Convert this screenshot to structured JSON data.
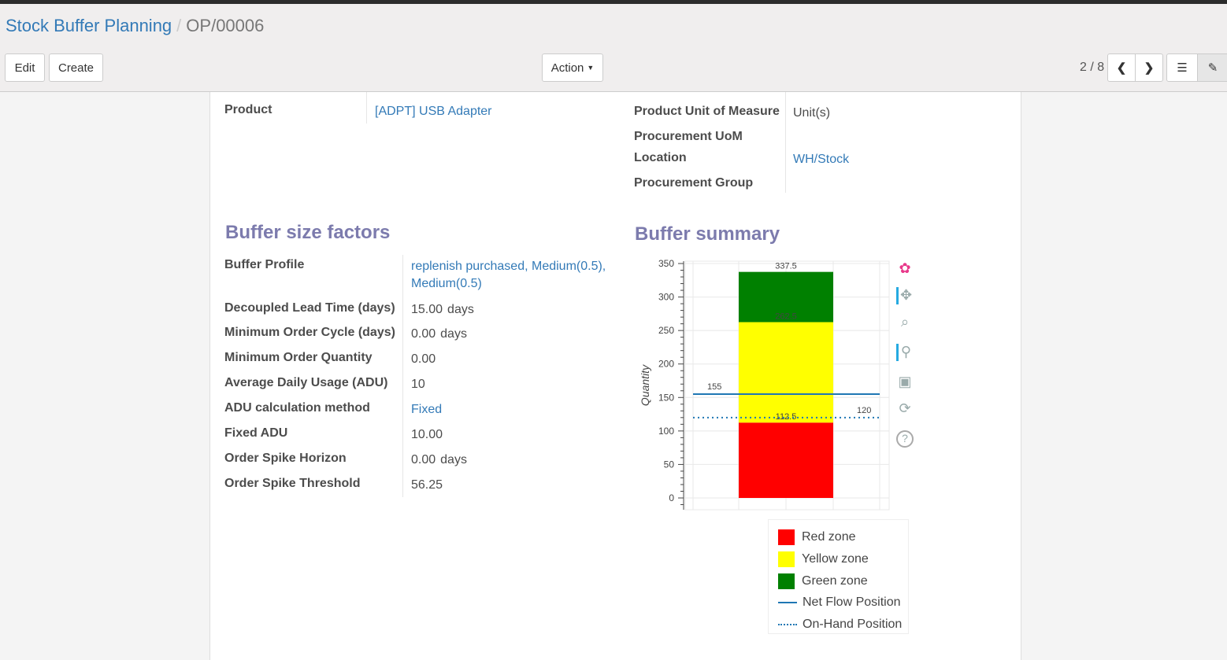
{
  "breadcrumb": {
    "parent": "Stock Buffer Planning",
    "current": "OP/00006"
  },
  "toolbar": {
    "edit": "Edit",
    "create": "Create",
    "action": "Action",
    "pager": "2 / 8"
  },
  "form": {
    "product_label": "Product",
    "product_value": "[ADPT] USB Adapter",
    "uom_label": "Product Unit of Measure",
    "uom_value": "Unit(s)",
    "proc_uom_label": "Procurement UoM",
    "location_label": "Location",
    "location_value": "WH/Stock",
    "proc_group_label": "Procurement Group"
  },
  "factors": {
    "title": "Buffer size factors",
    "rows": [
      {
        "label": "Buffer Profile",
        "value": "replenish purchased, Medium(0.5), Medium(0.5)",
        "link": true
      },
      {
        "label": "Decoupled Lead Time (days)",
        "value": "15.00",
        "unit": "days"
      },
      {
        "label": "Minimum Order Cycle (days)",
        "value": "0.00",
        "unit": "days"
      },
      {
        "label": "Minimum Order Quantity",
        "value": "0.00"
      },
      {
        "label": "Average Daily Usage (ADU)",
        "value": "10"
      },
      {
        "label": "ADU calculation method",
        "value": "Fixed",
        "link": true
      },
      {
        "label": "Fixed ADU",
        "value": "10.00"
      },
      {
        "label": "Order Spike Horizon",
        "value": "0.00",
        "unit": "days"
      },
      {
        "label": "Order Spike Threshold",
        "value": "56.25"
      }
    ]
  },
  "summary": {
    "title": "Buffer summary"
  },
  "chart_data": {
    "type": "bar",
    "ylabel": "Quantity",
    "ylim": [
      0,
      350
    ],
    "yticks": [
      0,
      50,
      100,
      150,
      200,
      250,
      300,
      350
    ],
    "stacks": [
      {
        "name": "Red zone",
        "from": 0,
        "to": 112.5,
        "color": "#ff0000",
        "label": "112.5"
      },
      {
        "name": "Yellow zone",
        "from": 112.5,
        "to": 262.5,
        "color": "#ffff00",
        "label": "262.5"
      },
      {
        "name": "Green zone",
        "from": 262.5,
        "to": 337.5,
        "color": "#008000",
        "label": "337.5"
      }
    ],
    "lines": [
      {
        "name": "Net Flow Position",
        "value": 155,
        "label": "155",
        "style": "solid",
        "color": "#1f77b4"
      },
      {
        "name": "On-Hand Position",
        "value": 120,
        "label": "120",
        "style": "dotted",
        "color": "#1f77b4"
      }
    ],
    "grid": true,
    "legend": "bottom"
  },
  "tools": [
    "bokeh-logo-icon",
    "pan-icon",
    "box-zoom-icon",
    "wheel-zoom-icon",
    "save-icon",
    "reset-icon",
    "help-icon"
  ]
}
